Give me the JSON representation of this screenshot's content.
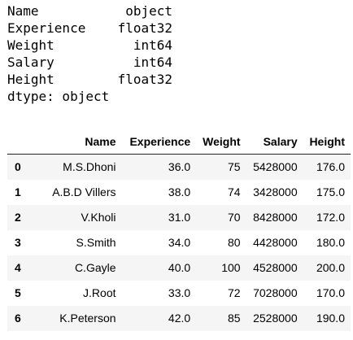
{
  "dtypes": {
    "rows": [
      {
        "column": "Name",
        "dtype": "object"
      },
      {
        "column": "Experience",
        "dtype": "float32"
      },
      {
        "column": "Weight",
        "dtype": "int64"
      },
      {
        "column": "Salary",
        "dtype": "int64"
      },
      {
        "column": "Height",
        "dtype": "float32"
      }
    ],
    "footer": "dtype: object"
  },
  "dataframe": {
    "index_header": "",
    "columns": [
      "Name",
      "Experience",
      "Weight",
      "Salary",
      "Height"
    ],
    "rows": [
      {
        "index": "0",
        "cells": [
          "M.S.Dhoni",
          "36.0",
          "75",
          "5428000",
          "176.0"
        ]
      },
      {
        "index": "1",
        "cells": [
          "A.B.D Villers",
          "38.0",
          "74",
          "3428000",
          "175.0"
        ]
      },
      {
        "index": "2",
        "cells": [
          "V.Kholi",
          "31.0",
          "70",
          "8428000",
          "172.0"
        ]
      },
      {
        "index": "3",
        "cells": [
          "S.Smith",
          "34.0",
          "80",
          "4428000",
          "180.0"
        ]
      },
      {
        "index": "4",
        "cells": [
          "C.Gayle",
          "40.0",
          "100",
          "4528000",
          "200.0"
        ]
      },
      {
        "index": "5",
        "cells": [
          "J.Root",
          "33.0",
          "72",
          "7028000",
          "170.0"
        ]
      },
      {
        "index": "6",
        "cells": [
          "K.Peterson",
          "42.0",
          "85",
          "2528000",
          "190.0"
        ]
      }
    ]
  }
}
